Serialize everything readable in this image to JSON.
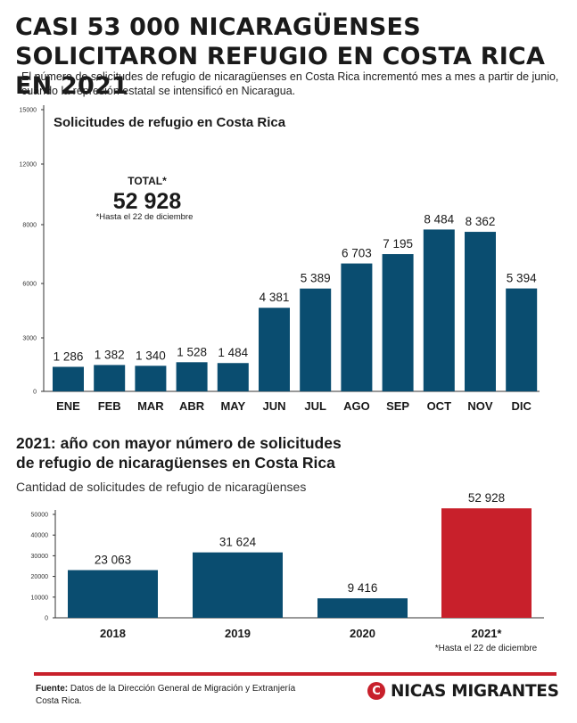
{
  "headline": "CASI 53 000 NICARAGÜENSES SOLICITARON REFUGIO EN COSTA RICA EN 2021",
  "intro": "El número de solicitudes de refugio de nicaragüenses en Costa Rica incrementó mes a mes a partir de junio, cuando la represión estatal se intensificó en Nicaragua.",
  "colors": {
    "bar": "#0a4d70",
    "highlight": "#c8202b",
    "axis": "#333333",
    "accent": "#c8202b"
  },
  "chart_data": [
    {
      "type": "bar",
      "title": "Solicitudes de refugio en Costa Rica",
      "categories": [
        "ENE",
        "FEB",
        "MAR",
        "ABR",
        "MAY",
        "JUN",
        "JUL",
        "AGO",
        "SEP",
        "OCT",
        "NOV",
        "DIC"
      ],
      "values": [
        1286,
        1382,
        1340,
        1528,
        1484,
        4381,
        5389,
        6703,
        7195,
        8484,
        8362,
        5394
      ],
      "labels": [
        "1 286",
        "1 382",
        "1 340",
        "1 528",
        "1 484",
        "4 381",
        "5 389",
        "6 703",
        "7 195",
        "8 484",
        "8 362",
        "5 394"
      ],
      "yticks": [
        "0",
        "3000",
        "6000",
        "8000",
        "12000",
        "15000"
      ],
      "ylim": [
        0,
        15000
      ],
      "grid": false,
      "total": {
        "label": "TOTAL*",
        "value": "52 928",
        "note": "*Hasta el 22 de diciembre"
      }
    },
    {
      "type": "bar",
      "title": "2021: año con mayor número de solicitudes de refugio de nicaragüenses en Costa Rica",
      "title_lines": [
        "2021: año con mayor número de solicitudes",
        "de refugio de nicaragüenses en Costa Rica"
      ],
      "subtitle": "Cantidad de solicitudes de refugio de nicaragüenses",
      "categories": [
        "2018",
        "2019",
        "2020",
        "2021*"
      ],
      "values": [
        23063,
        31624,
        9416,
        52928
      ],
      "labels": [
        "23 063",
        "31 624",
        "9 416",
        "52 928"
      ],
      "highlight_index": 3,
      "yticks": [
        "0",
        "10000",
        "20000",
        "30000",
        "40000",
        "50000"
      ],
      "ylim": [
        0,
        55000
      ],
      "grid": false,
      "note": "*Hasta el 22 de diciembre"
    }
  ],
  "source": {
    "label": "Fuente:",
    "text": "Datos de la Dirección General de Migración y Extranjería Costa Rica."
  },
  "brand": {
    "mark": "C",
    "name": "NICAS MIGRANTES"
  }
}
